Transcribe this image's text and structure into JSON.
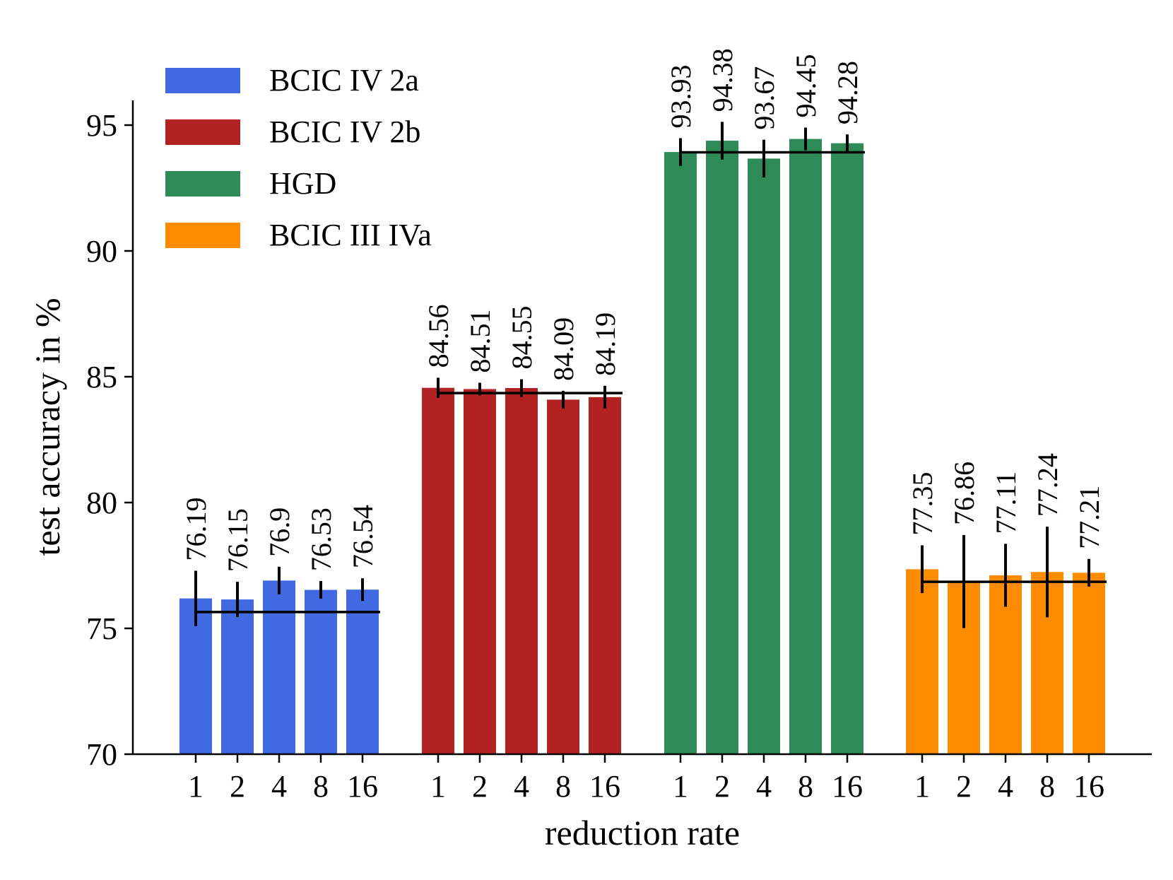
{
  "chart_data": {
    "type": "bar",
    "title": "",
    "xlabel": "reduction rate",
    "ylabel": "test accuracy in %",
    "ylim": [
      70,
      96
    ],
    "yticks": [
      70,
      75,
      80,
      85,
      90,
      95
    ],
    "categories": [
      "1",
      "2",
      "4",
      "8",
      "16"
    ],
    "legend_position": "top-left",
    "series": [
      {
        "name": "BCIC IV 2a",
        "color": "#4169E1",
        "values": [
          76.19,
          76.15,
          76.9,
          76.53,
          76.54
        ],
        "labels": [
          "76.19",
          "76.15",
          "76.9",
          "76.53",
          "76.54"
        ],
        "errors": [
          1.1,
          0.7,
          0.55,
          0.35,
          0.45
        ],
        "baseline": 75.65
      },
      {
        "name": "BCIC IV 2b",
        "color": "#B22222",
        "values": [
          84.56,
          84.51,
          84.55,
          84.09,
          84.19
        ],
        "labels": [
          "84.56",
          "84.51",
          "84.55",
          "84.09",
          "84.19"
        ],
        "errors": [
          0.4,
          0.25,
          0.35,
          0.35,
          0.45
        ],
        "baseline": 84.35
      },
      {
        "name": "HGD",
        "color": "#2E8B57",
        "values": [
          93.93,
          94.38,
          93.67,
          94.45,
          94.28
        ],
        "labels": [
          "93.93",
          "94.38",
          "93.67",
          "94.45",
          "94.28"
        ],
        "errors": [
          0.55,
          0.75,
          0.75,
          0.45,
          0.35
        ],
        "baseline": 93.92
      },
      {
        "name": "BCIC III IVa",
        "color": "#FF8C00",
        "values": [
          77.35,
          76.86,
          77.11,
          77.24,
          77.21
        ],
        "labels": [
          "77.35",
          "76.86",
          "77.11",
          "77.24",
          "77.21"
        ],
        "errors": [
          0.95,
          1.85,
          1.25,
          1.8,
          0.55
        ],
        "baseline": 76.85
      }
    ]
  }
}
